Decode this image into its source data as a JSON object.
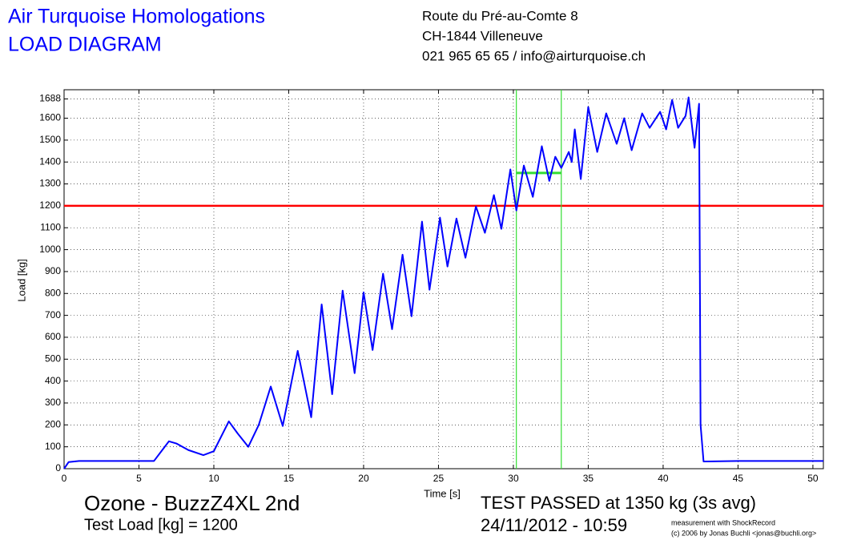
{
  "chart_data": {
    "type": "line",
    "title": "Air Turquoise Homologations",
    "subtitle": "LOAD DIAGRAM",
    "address": [
      "Route du Pré-au-Comte 8",
      "CH-1844 Villeneuve",
      "021 965 65 65 / info@airturquoise.ch"
    ],
    "xlabel": "Time [s]",
    "ylabel": "Load [kg]",
    "product": "Ozone - BuzzZ4XL 2nd",
    "test_load_label": "Test Load [kg] = 1200",
    "result": "TEST PASSED at 1350 kg (3s avg)",
    "datetime": "24/11/2012 - 10:59",
    "credits": [
      "measurement with ShockRecord",
      "(c) 2006 by Jonas Buchli <jonas@buchli.org>"
    ],
    "xlim": [
      0,
      50.7
    ],
    "ylim": [
      0,
      1730
    ],
    "xticks": [
      0,
      5,
      10,
      15,
      20,
      25,
      30,
      35,
      40,
      45,
      50
    ],
    "yticks": [
      0,
      100,
      200,
      300,
      400,
      500,
      600,
      700,
      800,
      900,
      1000,
      1100,
      1200,
      1300,
      1400,
      1500,
      1600,
      1688
    ],
    "grid": true,
    "x": [
      0,
      0.3,
      1,
      3,
      6,
      6.5,
      7,
      7.5,
      8.3,
      9.3,
      10,
      11,
      11.6,
      12.3,
      13,
      13.8,
      14.6,
      15.6,
      16.5,
      17.2,
      17.9,
      18.6,
      19.4,
      20,
      20.6,
      21.3,
      21.9,
      22.6,
      23.2,
      23.9,
      24.4,
      25.1,
      25.6,
      26.2,
      26.8,
      27.5,
      28.1,
      28.7,
      29.2,
      29.8,
      30.2,
      30.7,
      31.3,
      31.9,
      32.4,
      32.8,
      33.2,
      33.7,
      33.9,
      34.1,
      34.5,
      35,
      35.6,
      36.2,
      36.9,
      37.4,
      37.9,
      38.6,
      39.1,
      39.8,
      40.2,
      40.6,
      41,
      41.5,
      41.7,
      42.1,
      42.4,
      42.5,
      42.7,
      45,
      50.7
    ],
    "series": [
      {
        "name": "Load",
        "color": "#0000ff",
        "values": [
          0,
          30,
          35,
          35,
          35,
          80,
          125,
          115,
          85,
          62,
          80,
          216,
          160,
          100,
          200,
          375,
          195,
          538,
          235,
          750,
          340,
          813,
          436,
          805,
          542,
          890,
          637,
          977,
          696,
          1128,
          817,
          1146,
          923,
          1142,
          963,
          1197,
          1077,
          1249,
          1095,
          1366,
          1179,
          1384,
          1241,
          1472,
          1314,
          1424,
          1373,
          1446,
          1400,
          1549,
          1322,
          1651,
          1446,
          1622,
          1483,
          1600,
          1454,
          1622,
          1556,
          1629,
          1549,
          1684,
          1556,
          1611,
          1695,
          1465,
          1666,
          200,
          33,
          35,
          35
        ]
      }
    ],
    "reference_line": {
      "value": 1200,
      "color": "#ff0000"
    },
    "average_window": {
      "x": [
        30.2,
        33.2
      ],
      "value": 1350,
      "color": "#33dd33"
    }
  }
}
